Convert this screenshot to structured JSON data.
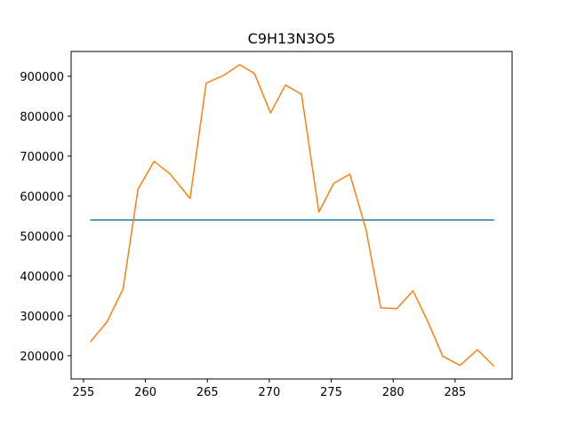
{
  "chart_data": {
    "type": "line",
    "title": "C9H13N3O5",
    "xlabel": "",
    "ylabel": "",
    "xlim": [
      254.0,
      289.6
    ],
    "ylim": [
      142000,
      962000
    ],
    "xticks": [
      255,
      260,
      265,
      270,
      275,
      280,
      285
    ],
    "yticks": [
      200000,
      300000,
      400000,
      500000,
      600000,
      700000,
      800000,
      900000
    ],
    "grid": false,
    "legend": "none",
    "series": [
      {
        "color": "#1f77b4",
        "x": [
          255.6,
          288.1
        ],
        "y": [
          540000,
          540000
        ]
      },
      {
        "color": "#ff7f0e",
        "x": [
          255.6,
          256.9,
          258.2,
          259.4,
          260.7,
          262.0,
          263.6,
          264.9,
          266.3,
          267.6,
          268.8,
          270.1,
          271.3,
          272.6,
          274.0,
          275.2,
          276.5,
          277.8,
          279.0,
          280.3,
          281.6,
          282.8,
          284.0,
          285.4,
          286.8,
          288.1
        ],
        "y": [
          237000,
          285000,
          368000,
          617000,
          687000,
          655000,
          594000,
          883000,
          902000,
          929000,
          907000,
          808000,
          878000,
          855000,
          560000,
          632000,
          655000,
          517000,
          320000,
          318000,
          363000,
          285000,
          199000,
          176000,
          215000,
          175000
        ]
      }
    ]
  }
}
